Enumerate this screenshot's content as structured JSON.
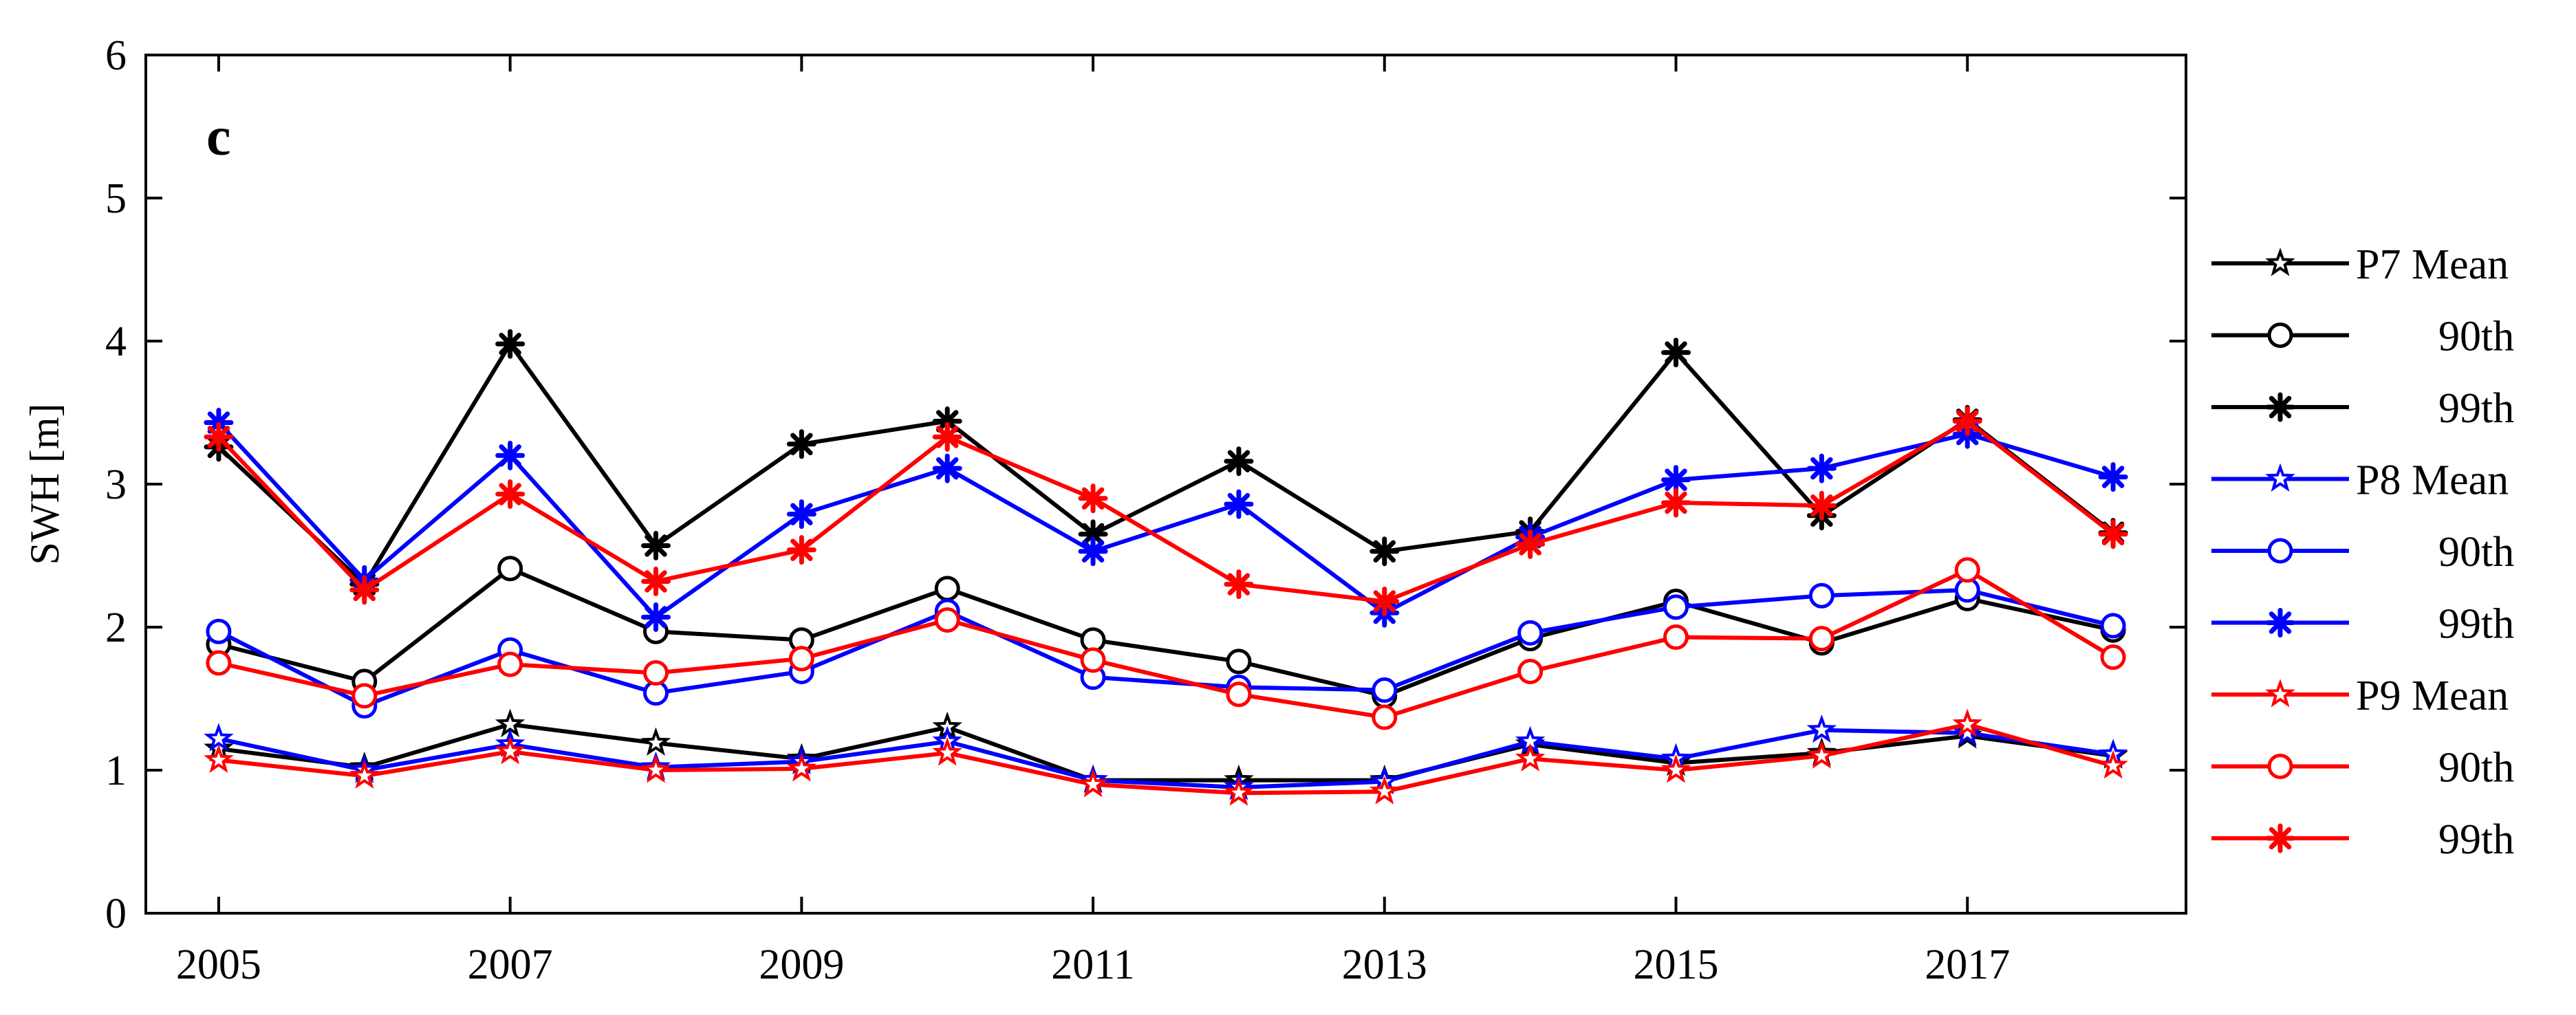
{
  "chart_data": {
    "type": "line",
    "panel_label": "c",
    "title": "",
    "xlabel": "",
    "ylabel": "SWH [m]",
    "xlim": [
      2004.5,
      2018.5
    ],
    "ylim": [
      0,
      6
    ],
    "x_ticks": [
      "2005",
      "2007",
      "2009",
      "2011",
      "2013",
      "2015",
      "2017"
    ],
    "y_ticks": [
      "0",
      "1",
      "2",
      "3",
      "4",
      "5",
      "6"
    ],
    "grid": false,
    "legend_position": "right-outside",
    "x": [
      2005,
      2006,
      2007,
      2008,
      2009,
      2010,
      2011,
      2012,
      2013,
      2014,
      2015,
      2016,
      2017,
      2018
    ],
    "series": [
      {
        "name": "P7 Mean",
        "color": "#000000",
        "marker": "pentagram",
        "values": [
          1.15,
          1.02,
          1.32,
          1.19,
          1.08,
          1.3,
          0.93,
          0.93,
          0.93,
          1.18,
          1.05,
          1.12,
          1.24,
          1.1
        ]
      },
      {
        "name": "90th",
        "color": "#000000",
        "marker": "circle",
        "values": [
          1.88,
          1.62,
          2.41,
          1.97,
          1.91,
          2.27,
          1.91,
          1.76,
          1.52,
          1.92,
          2.18,
          1.89,
          2.2,
          1.98
        ]
      },
      {
        "name": "99th",
        "color": "#000000",
        "marker": "asterisk",
        "values": [
          3.26,
          2.3,
          3.98,
          2.57,
          3.28,
          3.44,
          2.65,
          3.16,
          2.53,
          2.67,
          3.92,
          2.78,
          3.45,
          2.66
        ]
      },
      {
        "name": "P8 Mean",
        "color": "#0000ff",
        "marker": "pentagram",
        "values": [
          1.22,
          1.0,
          1.18,
          1.02,
          1.06,
          1.2,
          0.93,
          0.88,
          0.92,
          1.2,
          1.08,
          1.28,
          1.26,
          1.11
        ]
      },
      {
        "name": "90th",
        "color": "#0000ff",
        "marker": "circle",
        "values": [
          1.97,
          1.45,
          1.84,
          1.54,
          1.69,
          2.11,
          1.65,
          1.58,
          1.56,
          1.96,
          2.14,
          2.22,
          2.26,
          2.01
        ]
      },
      {
        "name": "99th",
        "color": "#0000ff",
        "marker": "asterisk",
        "values": [
          3.43,
          2.33,
          3.2,
          2.07,
          2.79,
          3.11,
          2.53,
          2.86,
          2.1,
          2.63,
          3.03,
          3.11,
          3.35,
          3.05
        ]
      },
      {
        "name": "P9 Mean",
        "color": "#ff0000",
        "marker": "pentagram",
        "values": [
          1.07,
          0.96,
          1.13,
          1.0,
          1.01,
          1.12,
          0.9,
          0.84,
          0.85,
          1.08,
          1.0,
          1.1,
          1.32,
          1.03
        ]
      },
      {
        "name": "90th",
        "color": "#ff0000",
        "marker": "circle",
        "values": [
          1.75,
          1.52,
          1.74,
          1.68,
          1.78,
          2.05,
          1.77,
          1.53,
          1.37,
          1.69,
          1.93,
          1.92,
          2.4,
          1.79
        ]
      },
      {
        "name": "99th",
        "color": "#ff0000",
        "marker": "asterisk",
        "values": [
          3.33,
          2.26,
          2.93,
          2.32,
          2.54,
          3.33,
          2.9,
          2.3,
          2.18,
          2.58,
          2.87,
          2.85,
          3.44,
          2.65
        ]
      }
    ]
  }
}
